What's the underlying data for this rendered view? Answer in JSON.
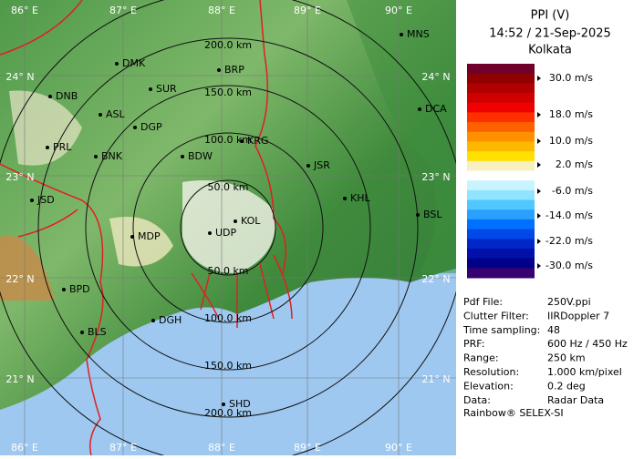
{
  "header": {
    "title": "PPI (V)",
    "datetime": "14:52 / 21-Sep-2025",
    "site": "Kolkata"
  },
  "colorbar": {
    "colors": [
      "#70002a",
      "#900000",
      "#b00000",
      "#d00000",
      "#f00000",
      "#ff3000",
      "#ff6000",
      "#ff9000",
      "#ffb800",
      "#ffe000",
      "#f8f0c0",
      "#ffffff",
      "#c8f4ff",
      "#90e4ff",
      "#50c8ff",
      "#2aa0ff",
      "#0070ff",
      "#0048e8",
      "#0028c8",
      "#0010a8",
      "#000088",
      "#380070"
    ],
    "labels": [
      "30.0 m/s",
      "18.0 m/s",
      "10.0 m/s",
      "2.0 m/s",
      "-6.0 m/s",
      "-14.0 m/s",
      "-22.0 m/s",
      "-30.0 m/s"
    ]
  },
  "info": [
    [
      "Pdf File:",
      "250V.ppi"
    ],
    [
      "Clutter Filter:",
      "IIRDoppler 7"
    ],
    [
      "Time sampling:",
      "48"
    ],
    [
      "PRF:",
      "600 Hz / 450 Hz"
    ],
    [
      "Range:",
      "250 km"
    ],
    [
      "Resolution:",
      "1.000 km/pixel"
    ],
    [
      "Elevation:",
      "0.2 deg"
    ],
    [
      "Data:",
      "Radar Data"
    ]
  ],
  "footer": "Rainbow® SELEX-SI",
  "map": {
    "lon_labels": [
      "86° E",
      "87° E",
      "88° E",
      "89° E",
      "90° E"
    ],
    "lat_labels": [
      "24° N",
      "23° N",
      "22° N",
      "21° N"
    ],
    "ring_labels": [
      "50.0 km",
      "100.0 km",
      "150.0 km",
      "200.0 km"
    ],
    "cities": [
      [
        "MNS"
      ],
      [
        "DMK"
      ],
      [
        "BRP"
      ],
      [
        "DNB"
      ],
      [
        "SUR"
      ],
      [
        "ASL"
      ],
      [
        "DCA"
      ],
      [
        "DGP"
      ],
      [
        "KRG"
      ],
      [
        "PRL"
      ],
      [
        "BNK"
      ],
      [
        "BDW"
      ],
      [
        "JSR"
      ],
      [
        "KHL"
      ],
      [
        "JSD"
      ],
      [
        "BSL"
      ],
      [
        "MDP"
      ],
      [
        "UDP"
      ],
      [
        "KOL"
      ],
      [
        "BPD"
      ],
      [
        "BLS"
      ],
      [
        "DGH"
      ],
      [
        "SHD"
      ]
    ]
  }
}
